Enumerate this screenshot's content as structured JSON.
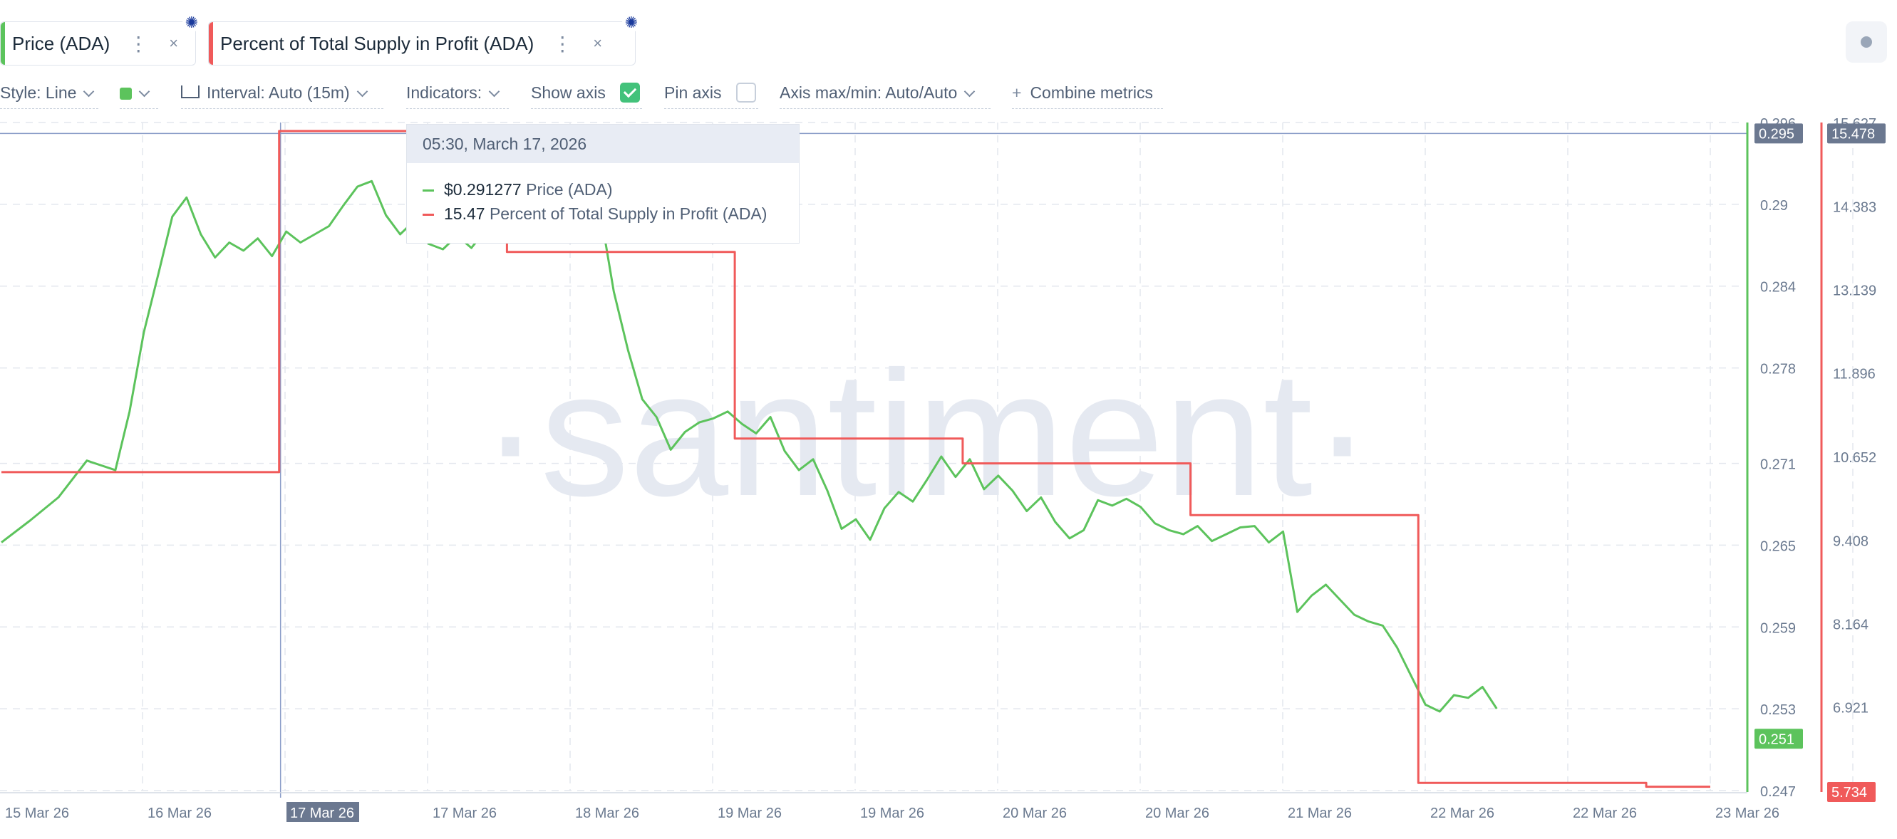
{
  "metrics": [
    {
      "label": "Price (ADA)",
      "color": "#5cc35c"
    },
    {
      "label": "Percent of Total Supply in Profit (ADA)",
      "color": "#f05a5a"
    }
  ],
  "menu_glyph": "⋮",
  "close_glyph": "×",
  "asset_icon": "cardano-icon",
  "toolbar": {
    "style": "Style: Line",
    "color_swatch": "#5cc35c",
    "interval": "Interval: Auto (15m)",
    "indicators": "Indicators:",
    "show_axis": "Show axis",
    "show_axis_checked": true,
    "pin_axis": "Pin axis",
    "pin_axis_checked": false,
    "axis_minmax": "Axis max/min: Auto/Auto",
    "combine_icon": "+",
    "combine": "Combine metrics"
  },
  "watermark": "·santiment·",
  "tooltip": {
    "date": "05:30, March 17, 2026",
    "rows": [
      {
        "value": "$0.291277",
        "name": "Price (ADA)",
        "color": "#5cc35c"
      },
      {
        "value": "15.47",
        "name": "Percent of Total Supply in Profit (ADA)",
        "color": "#f05a5a"
      }
    ]
  },
  "chart_data": {
    "type": "line",
    "x_tick_labels": [
      "15 Mar 26",
      "16 Mar 26",
      "17 Mar 26",
      "17 Mar 26",
      "18 Mar 26",
      "19 Mar 26",
      "19 Mar 26",
      "20 Mar 26",
      "20 Mar 26",
      "21 Mar 26",
      "22 Mar 26",
      "22 Mar 26",
      "23 Mar 26"
    ],
    "highlighted_x_label": "17 Mar 26",
    "y_left": {
      "name": "Price (ADA)",
      "ticks": [
        "0.296",
        "0.29",
        "0.284",
        "0.278",
        "0.271",
        "0.265",
        "0.259",
        "0.253",
        "0.247"
      ],
      "range": [
        0.247,
        0.296
      ],
      "current_label": "0.251",
      "crosshair_label": "0.295",
      "color": "#5cc35c"
    },
    "y_right": {
      "name": "Percent of Total Supply in Profit (ADA)",
      "ticks": [
        "15.627",
        "14.383",
        "13.139",
        "11.896",
        "10.652",
        "9.408",
        "8.164",
        "6.921"
      ],
      "range": [
        5.677,
        15.627
      ],
      "current_label": "5.734",
      "crosshair_label": "15.478",
      "color": "#f05a5a"
    },
    "grid": true,
    "series": [
      {
        "name": "Price (ADA)",
        "axis": "left",
        "color": "#5cc35c",
        "points": [
          [
            0,
            0.2652
          ],
          [
            2,
            0.2668
          ],
          [
            4,
            0.2685
          ],
          [
            6,
            0.2712
          ],
          [
            8,
            0.2705
          ],
          [
            9,
            0.2748
          ],
          [
            10,
            0.2806
          ],
          [
            11,
            0.2848
          ],
          [
            12,
            0.2891
          ],
          [
            13,
            0.2905
          ],
          [
            14,
            0.2878
          ],
          [
            15,
            0.2861
          ],
          [
            16,
            0.2872
          ],
          [
            17,
            0.2866
          ],
          [
            18,
            0.2875
          ],
          [
            19,
            0.2862
          ],
          [
            20,
            0.288
          ],
          [
            21,
            0.2872
          ],
          [
            22,
            0.2878
          ],
          [
            23,
            0.2884
          ],
          [
            24,
            0.2899
          ],
          [
            25,
            0.2913
          ],
          [
            26,
            0.2917
          ],
          [
            27,
            0.2892
          ],
          [
            28,
            0.2878
          ],
          [
            29,
            0.2888
          ],
          [
            30,
            0.2871
          ],
          [
            31,
            0.2867
          ],
          [
            32,
            0.2877
          ],
          [
            33,
            0.2868
          ],
          [
            34,
            0.2881
          ],
          [
            35,
            0.2892
          ],
          [
            36,
            0.2875
          ],
          [
            37,
            0.2898
          ],
          [
            38,
            0.2915
          ],
          [
            39,
            0.2918
          ],
          [
            40,
            0.2899
          ],
          [
            41,
            0.2906
          ],
          [
            42,
            0.2898
          ],
          [
            43,
            0.2836
          ],
          [
            44,
            0.2793
          ],
          [
            45,
            0.2757
          ],
          [
            46,
            0.2744
          ],
          [
            47,
            0.272
          ],
          [
            48,
            0.2733
          ],
          [
            49,
            0.274
          ],
          [
            50,
            0.2743
          ],
          [
            51,
            0.2748
          ],
          [
            52,
            0.2739
          ],
          [
            53,
            0.2732
          ],
          [
            54,
            0.2744
          ],
          [
            55,
            0.2719
          ],
          [
            56,
            0.2705
          ],
          [
            57,
            0.2713
          ],
          [
            58,
            0.269
          ],
          [
            59,
            0.2662
          ],
          [
            60,
            0.2669
          ],
          [
            61,
            0.2654
          ],
          [
            62,
            0.2677
          ],
          [
            63,
            0.2689
          ],
          [
            64,
            0.2682
          ],
          [
            65,
            0.2698
          ],
          [
            66,
            0.2715
          ],
          [
            67,
            0.27
          ],
          [
            68,
            0.2713
          ],
          [
            69,
            0.2691
          ],
          [
            70,
            0.2701
          ],
          [
            71,
            0.269
          ],
          [
            72,
            0.2675
          ],
          [
            73,
            0.2685
          ],
          [
            74,
            0.2667
          ],
          [
            75,
            0.2655
          ],
          [
            76,
            0.2661
          ],
          [
            77,
            0.2683
          ],
          [
            78,
            0.2679
          ],
          [
            79,
            0.2684
          ],
          [
            80,
            0.2678
          ],
          [
            81,
            0.2666
          ],
          [
            82,
            0.2661
          ],
          [
            83,
            0.2658
          ],
          [
            84,
            0.2664
          ],
          [
            85,
            0.2653
          ],
          [
            86,
            0.2658
          ],
          [
            87,
            0.2663
          ],
          [
            88,
            0.2664
          ],
          [
            89,
            0.2652
          ],
          [
            90,
            0.266
          ],
          [
            91,
            0.2601
          ],
          [
            92,
            0.2613
          ],
          [
            93,
            0.2621
          ],
          [
            94,
            0.261
          ],
          [
            95,
            0.2599
          ],
          [
            96,
            0.2594
          ],
          [
            97,
            0.2591
          ],
          [
            98,
            0.2575
          ],
          [
            99,
            0.2554
          ],
          [
            100,
            0.2533
          ],
          [
            101,
            0.2528
          ],
          [
            102,
            0.254
          ],
          [
            103,
            0.2538
          ],
          [
            104,
            0.2546
          ],
          [
            105,
            0.253
          ]
        ]
      },
      {
        "name": "Percent of Total Supply in Profit (ADA)",
        "axis": "right",
        "color": "#f05a5a",
        "points": [
          [
            0,
            10.42
          ],
          [
            19.5,
            10.42
          ],
          [
            19.5,
            15.5
          ],
          [
            35.5,
            15.5
          ],
          [
            35.5,
            13.7
          ],
          [
            51.5,
            13.7
          ],
          [
            51.5,
            10.92
          ],
          [
            67.5,
            10.92
          ],
          [
            67.5,
            10.55
          ],
          [
            83.5,
            10.55
          ],
          [
            83.5,
            9.78
          ],
          [
            99.5,
            9.78
          ],
          [
            99.5,
            5.79
          ],
          [
            115.5,
            5.79
          ],
          [
            115.5,
            5.734
          ],
          [
            120,
            5.734
          ]
        ]
      }
    ]
  }
}
